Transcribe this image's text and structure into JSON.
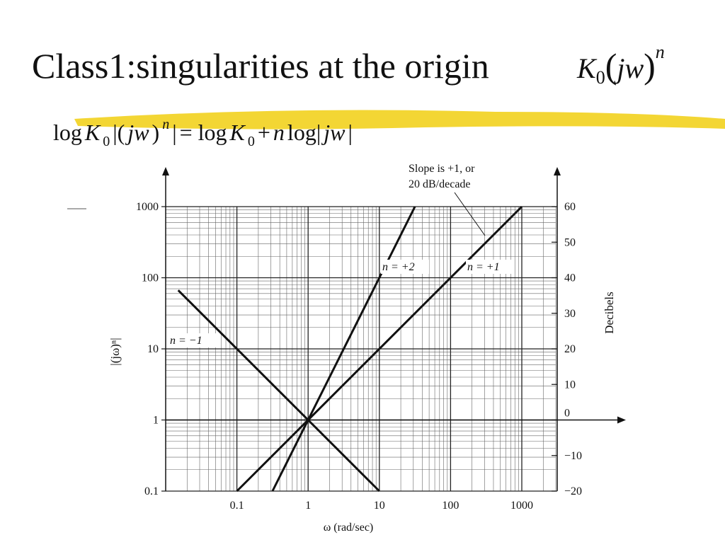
{
  "chart_data": {
    "type": "line",
    "title": "Class1:singularities at the origin",
    "title_formula": [
      "K",
      "0",
      "(",
      "jw",
      ")",
      "n"
    ],
    "equation": [
      "log",
      "K",
      "0",
      "|(",
      "jw",
      ")",
      "n",
      "|",
      "= log",
      "K",
      "0",
      "+",
      "n",
      "log|",
      "jw",
      "|"
    ],
    "xlabel": "ω (rad/sec)",
    "ylabel": "|(jω)ⁿ|",
    "y2label": "Decibels",
    "log_x": true,
    "log_y": true,
    "grid": true,
    "xlim": [
      0.01,
      3000
    ],
    "xticks": [
      0.1,
      1,
      10,
      100,
      1000
    ],
    "ylim": [
      0.1,
      1000
    ],
    "yticks": [
      0.1,
      1,
      10,
      100,
      1000
    ],
    "y2lim": [
      -20,
      60
    ],
    "y2ticks": [
      {
        "value": -20,
        "label": "−20"
      },
      {
        "value": -10,
        "label": "−10"
      },
      0,
      10,
      20,
      30,
      40,
      50,
      60
    ],
    "series": [
      {
        "name": "n = −1",
        "color": "#111111",
        "x": [
          0.015,
          10
        ],
        "values": [
          66.7,
          0.1
        ]
      },
      {
        "name": "n = +1",
        "color": "#111111",
        "x": [
          0.1,
          1000
        ],
        "values": [
          0.1,
          1000
        ]
      },
      {
        "name": "n = +2",
        "color": "#111111",
        "x": [
          0.316,
          31.6
        ],
        "values": [
          0.1,
          1000
        ]
      }
    ],
    "annotations": [
      "Slope is +1, or",
      "20 dB/decade"
    ]
  }
}
